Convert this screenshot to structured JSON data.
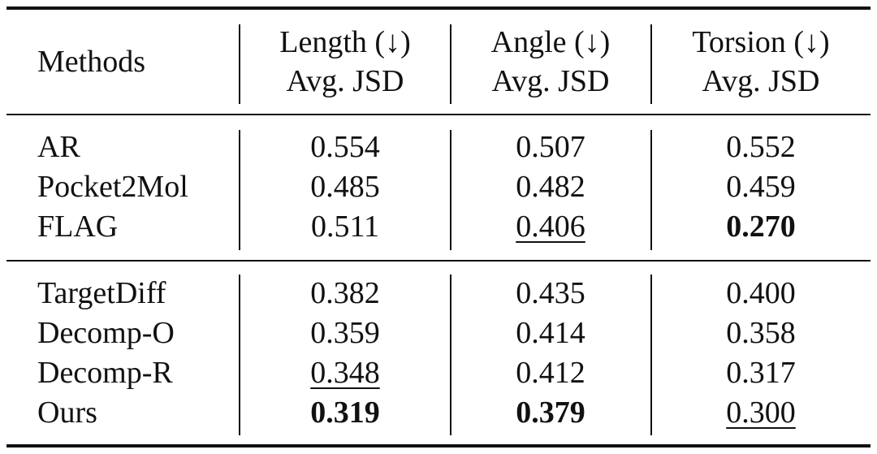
{
  "table": {
    "header": {
      "methods": "Methods",
      "length_line1": "Length (↓)",
      "angle_line1": "Angle (↓)",
      "torsion_line1": "Torsion (↓)",
      "subheader": "Avg. JSD"
    },
    "group1": [
      {
        "method": "AR",
        "length": "0.554",
        "angle": "0.507",
        "torsion": "0.552"
      },
      {
        "method": "Pocket2Mol",
        "length": "0.485",
        "angle": "0.482",
        "torsion": "0.459"
      },
      {
        "method": "FLAG",
        "length": "0.511",
        "angle": "0.406",
        "torsion": "0.270"
      }
    ],
    "group2": [
      {
        "method": "TargetDiff",
        "length": "0.382",
        "angle": "0.435",
        "torsion": "0.400"
      },
      {
        "method": "Decomp-O",
        "length": "0.359",
        "angle": "0.414",
        "torsion": "0.358"
      },
      {
        "method": "Decomp-R",
        "length": "0.348",
        "angle": "0.412",
        "torsion": "0.317"
      },
      {
        "method": "Ours",
        "length": "0.319",
        "angle": "0.379",
        "torsion": "0.300"
      }
    ]
  }
}
